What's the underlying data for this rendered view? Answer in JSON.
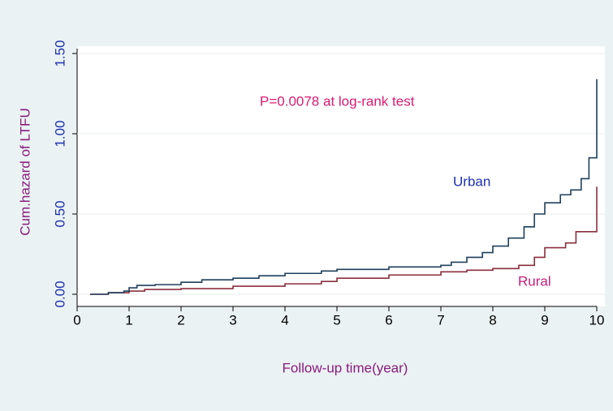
{
  "chart_data": {
    "type": "line",
    "step": true,
    "x_label": "Follow-up time(year)",
    "y_label": "Cum.hazard of LTFU",
    "annotation": "P=0.0078 at log-rank test",
    "xlim": [
      0,
      10
    ],
    "ylim": [
      0,
      1.5
    ],
    "xticks": [
      0,
      1,
      2,
      3,
      4,
      5,
      6,
      7,
      8,
      9,
      10
    ],
    "yticks": [
      {
        "value": 0,
        "label": "0.00"
      },
      {
        "value": 0.5,
        "label": "0.50"
      },
      {
        "value": 1,
        "label": "1.00"
      },
      {
        "value": 1.5,
        "label": "1.50"
      }
    ],
    "grid": true,
    "series": [
      {
        "name": "Urban",
        "color": "#1f3f5c",
        "x": [
          0.25,
          0.6,
          0.9,
          1.0,
          1.15,
          1.5,
          2.0,
          2.4,
          3.0,
          3.5,
          4.0,
          4.7,
          5.0,
          6.0,
          7.0,
          7.2,
          7.5,
          7.8,
          8.0,
          8.3,
          8.6,
          8.8,
          9.0,
          9.3,
          9.5,
          9.7,
          9.85,
          10.0
        ],
        "values": [
          0,
          0.01,
          0.02,
          0.04,
          0.055,
          0.06,
          0.075,
          0.09,
          0.1,
          0.115,
          0.13,
          0.145,
          0.155,
          0.17,
          0.18,
          0.2,
          0.23,
          0.26,
          0.3,
          0.35,
          0.42,
          0.5,
          0.57,
          0.62,
          0.65,
          0.72,
          0.85,
          1.34
        ]
      },
      {
        "name": "Rural",
        "color": "#8b2e3c",
        "x": [
          0.25,
          0.6,
          1.0,
          1.3,
          2.0,
          3.0,
          4.0,
          4.7,
          5.0,
          6.0,
          7.0,
          7.5,
          8.0,
          8.5,
          8.8,
          9.0,
          9.4,
          9.6,
          10.0
        ],
        "values": [
          0,
          0.01,
          0.02,
          0.03,
          0.035,
          0.05,
          0.065,
          0.08,
          0.1,
          0.12,
          0.14,
          0.15,
          0.16,
          0.18,
          0.23,
          0.29,
          0.32,
          0.39,
          0.67
        ]
      }
    ]
  }
}
